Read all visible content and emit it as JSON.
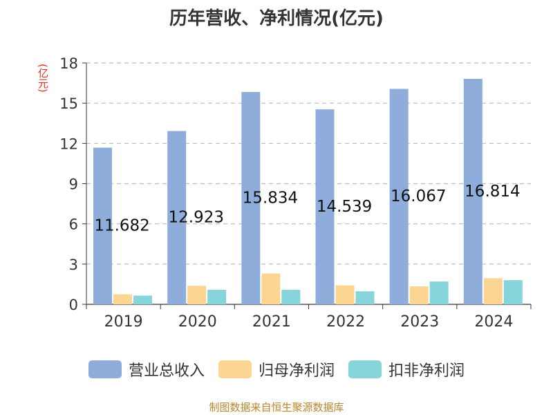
{
  "title": "历年营收、净利情况(亿元)",
  "unit": "(亿元)",
  "footer": "制图数据来自恒生聚源数据库",
  "colors": {
    "营业总收入": "#8eaddb",
    "归母净利润": "#fcd592",
    "扣非净利润": "#86d5da",
    "axis": "#333333",
    "grid": "#bbbbbb"
  },
  "chart_data": {
    "type": "bar",
    "title": "历年营收、净利情况(亿元)",
    "ylabel": "(亿元)",
    "ylim": [
      0,
      18
    ],
    "yticks": [
      0,
      3,
      6,
      9,
      12,
      15,
      18
    ],
    "grid": true,
    "legend_position": "bottom",
    "categories": [
      "2019",
      "2020",
      "2021",
      "2022",
      "2023",
      "2024"
    ],
    "series": [
      {
        "name": "营业总收入",
        "values": [
          11.682,
          12.923,
          15.834,
          14.539,
          16.067,
          16.814
        ],
        "labels": [
          "11.682",
          "12.923",
          "15.834",
          "14.539",
          "16.067",
          "16.814"
        ]
      },
      {
        "name": "归母净利润",
        "values": [
          0.75,
          1.38,
          2.3,
          1.42,
          1.34,
          1.95
        ]
      },
      {
        "name": "扣非净利润",
        "values": [
          0.65,
          1.08,
          1.08,
          0.97,
          1.7,
          1.8
        ]
      }
    ]
  }
}
